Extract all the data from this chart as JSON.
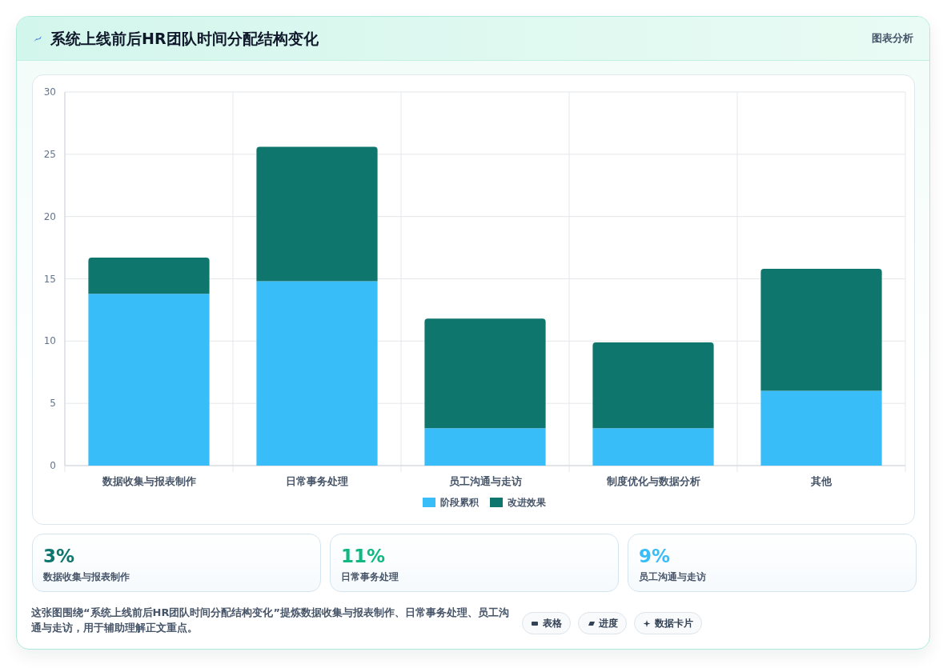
{
  "chart_data": [
    {
      "type": "bar",
      "title": "系统上线前后HR团队时间分配结构变化",
      "categories": [
        "数据收集与报表制作",
        "日常事务处理",
        "员工沟通与走访",
        "制度优化与数据分析",
        "其他"
      ],
      "series": [
        {
          "name": "阶段累积",
          "color": "#38bdf8",
          "values": [
            13.8,
            14.8,
            3.0,
            3.0,
            6.0
          ]
        },
        {
          "name": "改进效果",
          "color": "#0f766e",
          "values": [
            2.9,
            10.8,
            8.8,
            6.9,
            9.8
          ]
        }
      ],
      "stacked": true,
      "ylim": [
        0,
        30
      ],
      "yticks": [
        0,
        5,
        10,
        15,
        20,
        25,
        30
      ],
      "grid": true,
      "legend": "bottom",
      "annotations": [
        "图表分析"
      ]
    },
    {
      "type": "other",
      "annotations": [
        "3%",
        "数据收集与报表制作",
        "11%",
        "日常事务处理",
        "9%",
        "员工沟通与走访",
        "这张图围绕“系统上线前后HR团队时间分配结构变化”提炼数据收集与报表制作、日常事务处理、员工沟通与走访，用于辅助理解正文重点。",
        "表格",
        "进度",
        "数据卡片"
      ]
    }
  ]
}
